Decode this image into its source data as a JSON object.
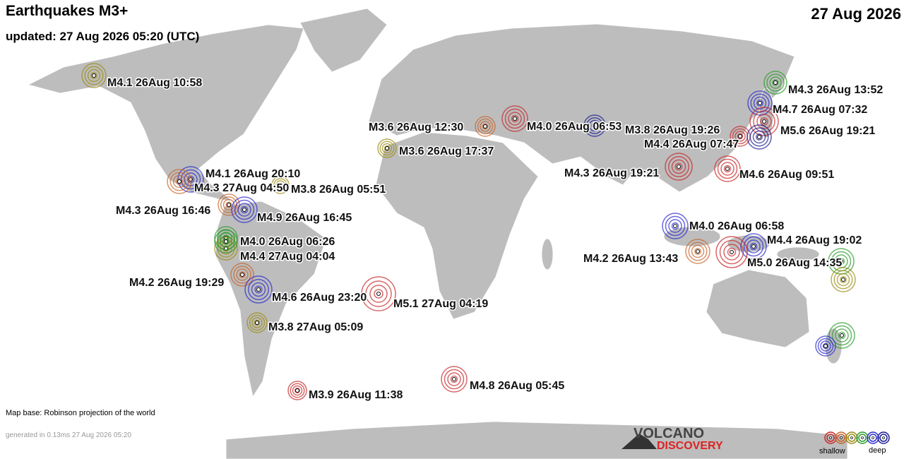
{
  "header": {
    "title": "Earthquakes M3+",
    "updated": "updated: 27 Aug 2026 05:20 (UTC)",
    "date": "27 Aug 2026"
  },
  "quakes": [
    "M4.1 26Aug 10:58",
    "M4.3 26Aug 13:52",
    "M4.7 26Aug 07:32",
    "M5.6 26Aug 19:21",
    "M4.0 26Aug 06:53",
    "M3.6 26Aug 12:30",
    "M3.8 26Aug 19:26",
    "M4.4 26Aug 07:47",
    "M3.6 26Aug 17:37",
    "M4.3 26Aug 19:21",
    "M4.6 26Aug 09:51",
    "M4.1 26Aug 20:10",
    "M4.3 27Aug 04:50",
    "M3.8 26Aug 05:51",
    "M4.3 26Aug 16:46",
    "M4.9 26Aug 16:45",
    "M4.0 26Aug 06:58",
    "M4.0 26Aug 06:26",
    "M4.4 27Aug 04:04",
    "M4.4 26Aug 19:02",
    "M4.2 26Aug 13:43",
    "M5.0 26Aug 14:35",
    "M4.2 26Aug 19:29",
    "M4.6 26Aug 23:20",
    "M5.1 27Aug 04:19",
    "M3.8 27Aug 05:09",
    "M4.8 26Aug 05:45",
    "M3.9 26Aug 11:38"
  ],
  "footer": {
    "map_base": "Map base: Robinson projection of the world",
    "generated": "generated in 0.13ms 27 Aug 2026 05:20"
  },
  "logo": {
    "line1": "VOLCANO",
    "line2": "DISCOVERY"
  },
  "legend": {
    "shallow": "shallow",
    "deep": "deep"
  }
}
